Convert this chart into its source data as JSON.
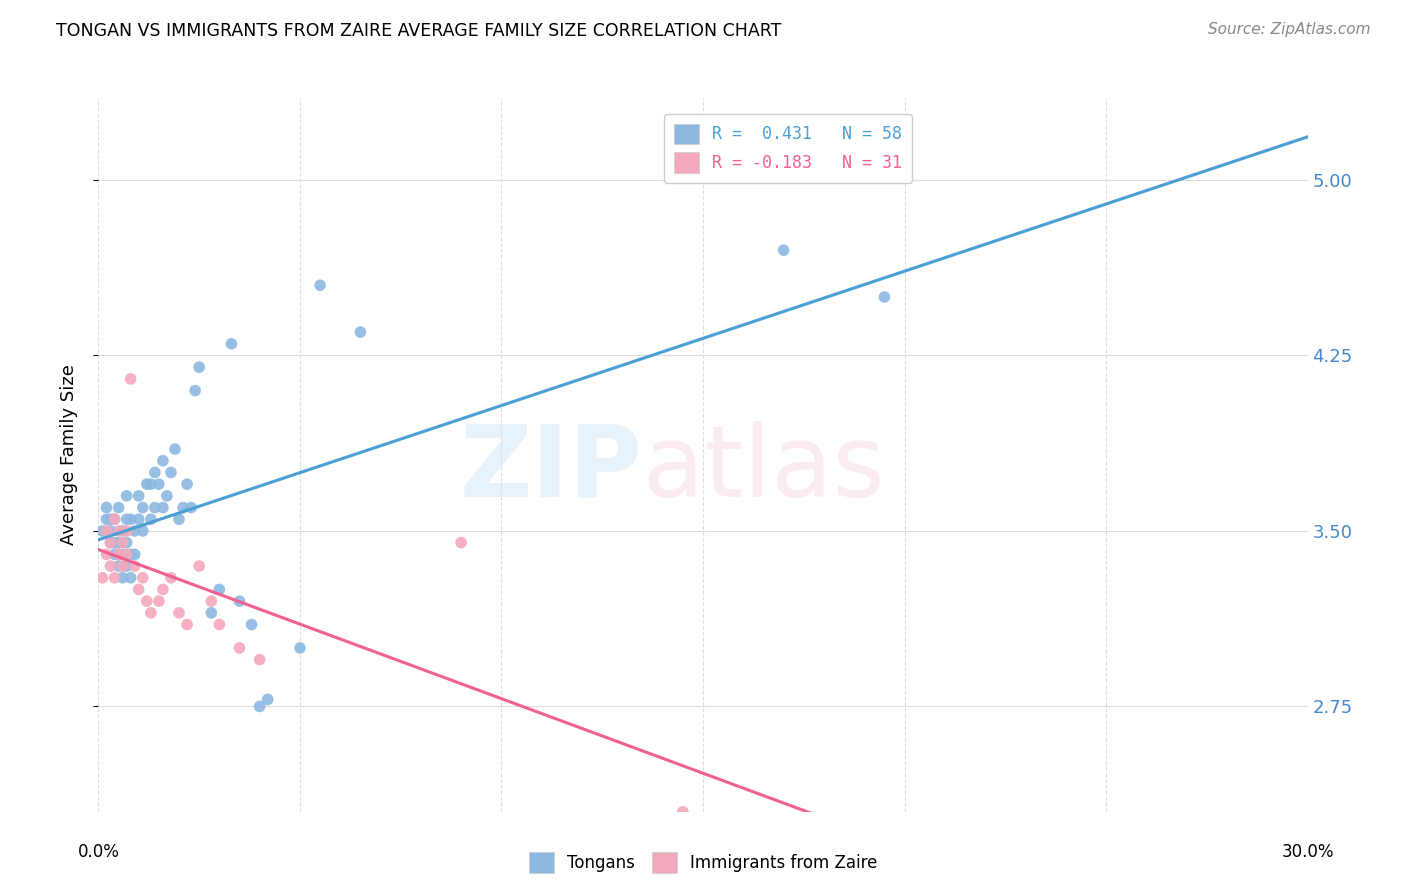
{
  "title": "TONGAN VS IMMIGRANTS FROM ZAIRE AVERAGE FAMILY SIZE CORRELATION CHART",
  "source": "Source: ZipAtlas.com",
  "ylabel": "Average Family Size",
  "yticks": [
    2.75,
    3.5,
    4.25,
    5.0
  ],
  "xlim": [
    0.0,
    0.3
  ],
  "ylim": [
    2.3,
    5.35
  ],
  "legend1_text": "R =  0.431   N = 58",
  "legend2_text": "R = -0.183   N = 31",
  "blue_scatter_color": "#8cb8e0",
  "pink_scatter_color": "#f4a8bb",
  "blue_line_color": "#4a9fd4",
  "pink_line_color": "#f06090",
  "dashed_line_color": "#aaaaaa",
  "tick_color": "#4488cc",
  "grid_color": "#dddddd",
  "tongans_x": [
    0.001,
    0.002,
    0.002,
    0.003,
    0.003,
    0.003,
    0.004,
    0.004,
    0.004,
    0.005,
    0.005,
    0.005,
    0.005,
    0.006,
    0.006,
    0.006,
    0.007,
    0.007,
    0.007,
    0.007,
    0.008,
    0.008,
    0.008,
    0.009,
    0.009,
    0.01,
    0.01,
    0.011,
    0.011,
    0.012,
    0.013,
    0.013,
    0.014,
    0.014,
    0.015,
    0.016,
    0.016,
    0.017,
    0.018,
    0.019,
    0.02,
    0.021,
    0.022,
    0.023,
    0.024,
    0.025,
    0.028,
    0.03,
    0.033,
    0.035,
    0.038,
    0.04,
    0.042,
    0.05,
    0.055,
    0.065,
    0.17,
    0.195
  ],
  "tongans_y": [
    3.5,
    3.55,
    3.6,
    3.45,
    3.5,
    3.55,
    3.4,
    3.45,
    3.55,
    3.35,
    3.4,
    3.45,
    3.6,
    3.3,
    3.4,
    3.5,
    3.35,
    3.45,
    3.55,
    3.65,
    3.3,
    3.4,
    3.55,
    3.4,
    3.5,
    3.55,
    3.65,
    3.5,
    3.6,
    3.7,
    3.55,
    3.7,
    3.6,
    3.75,
    3.7,
    3.6,
    3.8,
    3.65,
    3.75,
    3.85,
    3.55,
    3.6,
    3.7,
    3.6,
    4.1,
    4.2,
    3.15,
    3.25,
    4.3,
    3.2,
    3.1,
    2.75,
    2.78,
    3.0,
    4.55,
    4.35,
    4.7,
    4.5
  ],
  "zaire_x": [
    0.001,
    0.002,
    0.002,
    0.003,
    0.003,
    0.004,
    0.004,
    0.005,
    0.005,
    0.006,
    0.006,
    0.007,
    0.007,
    0.008,
    0.009,
    0.01,
    0.011,
    0.012,
    0.013,
    0.015,
    0.016,
    0.018,
    0.02,
    0.022,
    0.025,
    0.028,
    0.03,
    0.035,
    0.04,
    0.09,
    0.145
  ],
  "zaire_y": [
    3.3,
    3.4,
    3.5,
    3.35,
    3.45,
    3.3,
    3.55,
    3.4,
    3.5,
    3.35,
    3.45,
    3.4,
    3.5,
    4.15,
    3.35,
    3.25,
    3.3,
    3.2,
    3.15,
    3.2,
    3.25,
    3.3,
    3.15,
    3.1,
    3.35,
    3.2,
    3.1,
    3.0,
    2.95,
    3.45,
    2.3
  ]
}
